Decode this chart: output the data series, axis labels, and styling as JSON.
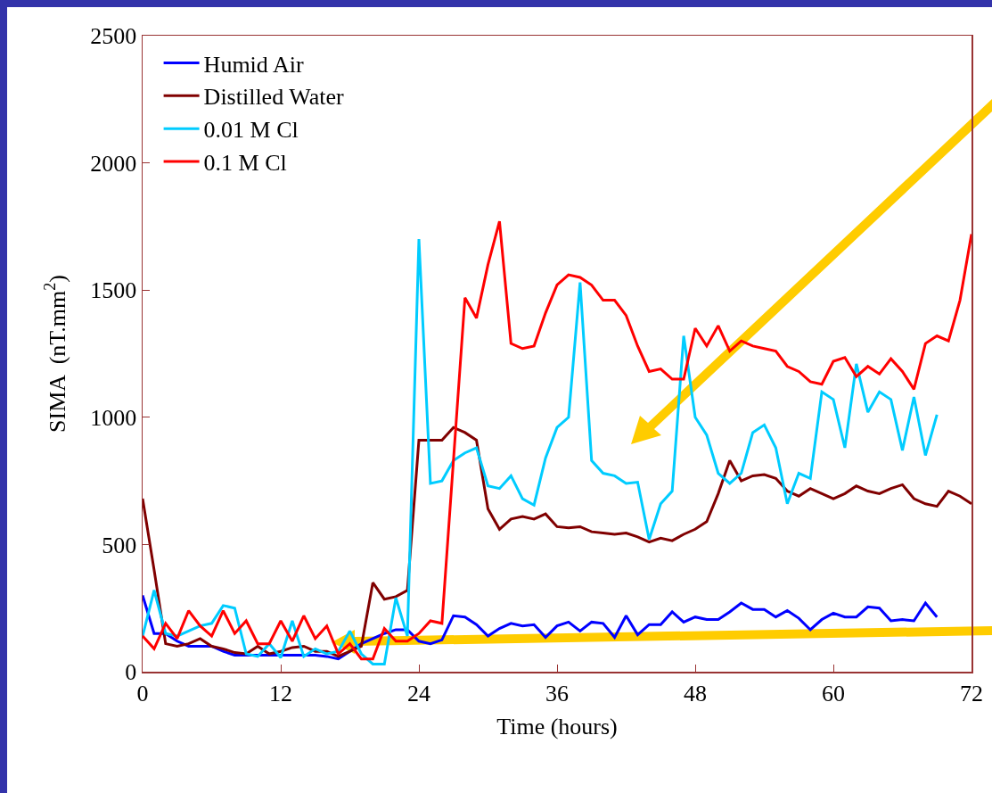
{
  "chart_data": {
    "type": "line",
    "xlabel": "Time (hours)",
    "ylabel": "SIMA  (nT.mm$^{2}$)",
    "xlim": [
      0,
      72
    ],
    "xticks": [
      0,
      12,
      24,
      36,
      48,
      60,
      72
    ],
    "ylim": [
      0,
      2500
    ],
    "yticks": [
      0,
      500,
      1000,
      1500,
      2000,
      2500
    ],
    "grid": false,
    "legend": "top left",
    "marker": "none",
    "line_style": "solid",
    "series": [
      {
        "name": "Humid Air",
        "color": "#0000ff",
        "x": [
          0,
          1,
          2,
          3,
          4,
          5,
          6,
          7,
          8,
          9,
          10,
          11,
          12,
          13,
          14,
          15,
          16,
          17,
          18,
          19,
          20,
          21,
          22,
          23,
          24,
          25,
          26,
          27,
          28,
          29,
          30,
          31,
          32,
          33,
          34,
          35,
          36,
          37,
          38,
          39,
          40,
          41,
          42,
          43,
          44,
          45,
          46,
          47,
          48,
          49,
          50,
          51,
          52,
          53,
          54,
          55,
          56,
          57,
          58,
          59,
          60,
          61,
          62,
          63,
          64,
          65,
          66,
          67,
          68,
          69
        ],
        "values": [
          300,
          150,
          150,
          120,
          100,
          100,
          100,
          80,
          65,
          65,
          65,
          65,
          65,
          65,
          65,
          65,
          60,
          50,
          80,
          110,
          130,
          150,
          165,
          165,
          120,
          110,
          125,
          220,
          215,
          185,
          140,
          170,
          190,
          180,
          185,
          135,
          180,
          195,
          160,
          195,
          190,
          135,
          220,
          145,
          185,
          185,
          235,
          195,
          215,
          205,
          205,
          235,
          270,
          245,
          245,
          215,
          240,
          210,
          165,
          205,
          230,
          215,
          215,
          255,
          250,
          200,
          205,
          200,
          270,
          215
        ]
      },
      {
        "name": "Distilled Water",
        "color": "#800000",
        "x": [
          0,
          1,
          2,
          3,
          4,
          5,
          6,
          7,
          8,
          9,
          10,
          11,
          12,
          13,
          14,
          15,
          16,
          17,
          18,
          19,
          20,
          21,
          22,
          23,
          24,
          25,
          26,
          27,
          28,
          29,
          30,
          31,
          32,
          33,
          34,
          35,
          36,
          37,
          38,
          39,
          40,
          41,
          42,
          43,
          44,
          45,
          46,
          47,
          48,
          49,
          50,
          51,
          52,
          53,
          54,
          55,
          56,
          57,
          58,
          59,
          60,
          61,
          62,
          63,
          64,
          65,
          66,
          67,
          68,
          69,
          70,
          71,
          72
        ],
        "values": [
          680,
          400,
          110,
          100,
          110,
          130,
          100,
          90,
          75,
          70,
          100,
          70,
          80,
          95,
          100,
          80,
          80,
          60,
          80,
          100,
          350,
          285,
          295,
          320,
          910,
          910,
          910,
          960,
          940,
          910,
          640,
          560,
          600,
          610,
          600,
          620,
          570,
          565,
          570,
          550,
          545,
          540,
          545,
          530,
          510,
          525,
          515,
          540,
          560,
          590,
          700,
          830,
          750,
          770,
          775,
          760,
          710,
          690,
          720,
          700,
          680,
          700,
          730,
          710,
          700,
          720,
          735,
          680,
          660,
          650,
          710,
          690,
          660
        ]
      },
      {
        "name": "0.01 M Cl",
        "color": "#00ccff",
        "x": [
          0,
          1,
          2,
          3,
          4,
          5,
          6,
          7,
          8,
          9,
          10,
          11,
          12,
          13,
          14,
          15,
          16,
          17,
          18,
          19,
          20,
          21,
          22,
          23,
          24,
          25,
          26,
          27,
          28,
          29,
          30,
          31,
          32,
          33,
          34,
          35,
          36,
          37,
          38,
          39,
          40,
          41,
          42,
          43,
          44,
          45,
          46,
          47,
          48,
          49,
          50,
          51,
          52,
          53,
          54,
          55,
          56,
          57,
          58,
          59,
          60,
          61,
          62,
          63,
          64,
          65,
          66,
          67,
          68,
          69
        ],
        "values": [
          140,
          320,
          150,
          140,
          160,
          180,
          190,
          260,
          250,
          70,
          60,
          110,
          55,
          200,
          60,
          90,
          70,
          80,
          160,
          70,
          30,
          30,
          290,
          140,
          1700,
          740,
          750,
          830,
          860,
          880,
          730,
          720,
          770,
          680,
          655,
          840,
          960,
          1000,
          1530,
          830,
          780,
          770,
          740,
          745,
          520,
          660,
          710,
          1320,
          1000,
          930,
          780,
          740,
          780,
          940,
          970,
          880,
          660,
          780,
          760,
          1100,
          1070,
          880,
          1210,
          1020,
          1100,
          1070,
          870,
          1080,
          850,
          1010
        ]
      },
      {
        "name": "0.1 M Cl",
        "color": "#ff0000",
        "x": [
          0,
          1,
          2,
          3,
          4,
          5,
          6,
          7,
          8,
          9,
          10,
          11,
          12,
          13,
          14,
          15,
          16,
          17,
          18,
          19,
          20,
          21,
          22,
          23,
          24,
          25,
          26,
          28,
          29,
          30,
          31,
          32,
          33,
          34,
          35,
          36,
          37,
          38,
          39,
          40,
          41,
          42,
          43,
          44,
          45,
          46,
          47,
          48,
          49,
          50,
          51,
          52,
          53,
          54,
          55,
          56,
          57,
          58,
          59,
          60,
          61,
          62,
          63,
          64,
          65,
          66,
          67,
          68,
          69,
          70,
          71,
          72
        ],
        "values": [
          140,
          90,
          190,
          130,
          240,
          180,
          140,
          240,
          150,
          200,
          110,
          110,
          200,
          120,
          220,
          130,
          180,
          70,
          110,
          50,
          50,
          170,
          120,
          120,
          150,
          200,
          190,
          1470,
          1390,
          1600,
          1770,
          1290,
          1270,
          1280,
          1410,
          1520,
          1560,
          1550,
          1520,
          1460,
          1460,
          1400,
          1280,
          1180,
          1190,
          1150,
          1150,
          1350,
          1280,
          1360,
          1260,
          1300,
          1280,
          1270,
          1260,
          1200,
          1180,
          1140,
          1130,
          1220,
          1235,
          1160,
          1200,
          1170,
          1230,
          1180,
          1110,
          1290,
          1320,
          1300,
          1460,
          1720
        ]
      }
    ]
  }
}
